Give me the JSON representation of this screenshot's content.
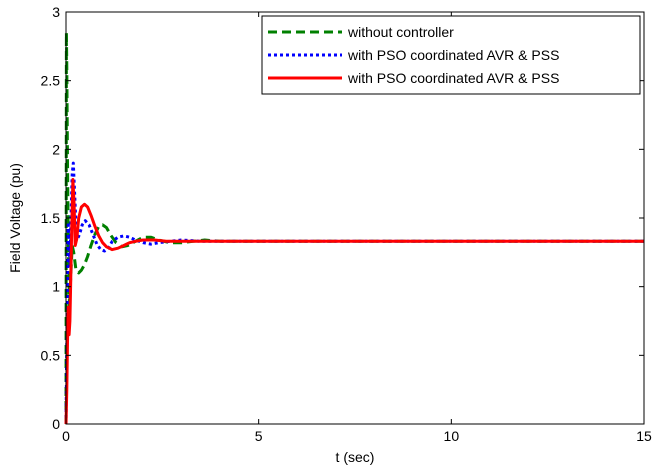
{
  "chart_data": {
    "type": "line",
    "title": "",
    "xlabel": "t (sec)",
    "ylabel": "Field Voltage (pu)",
    "xlim": [
      0,
      15
    ],
    "ylim": [
      0,
      3
    ],
    "xticks": [
      0,
      5,
      10,
      15
    ],
    "yticks": [
      0,
      0.5,
      1,
      1.5,
      2,
      2.5,
      3
    ],
    "xtick_labels": [
      "0",
      "5",
      "10",
      "15"
    ],
    "ytick_labels": [
      "0",
      "0.5",
      "1",
      "1.5",
      "2",
      "2.5",
      "3"
    ],
    "grid": false,
    "legend_position": "top-right",
    "series": [
      {
        "name": "without controller",
        "color": "#008000",
        "style": "dashed",
        "x": [
          0,
          0.01,
          0.02,
          0.04,
          0.06,
          0.09,
          0.12,
          0.16,
          0.2,
          0.26,
          0.33,
          0.4,
          0.48,
          0.56,
          0.65,
          0.75,
          0.85,
          0.95,
          1.05,
          1.15,
          1.3,
          1.45,
          1.6,
          1.8,
          2.0,
          2.2,
          2.4,
          2.7,
          3.0,
          3.3,
          3.6,
          4.0,
          5.0,
          6.0,
          8.0,
          10.0,
          12.0,
          15.0
        ],
        "y": [
          0,
          2.85,
          2.6,
          1.9,
          1.3,
          0.85,
          1.05,
          1.3,
          1.25,
          1.12,
          1.1,
          1.12,
          1.16,
          1.22,
          1.3,
          1.38,
          1.44,
          1.45,
          1.43,
          1.38,
          1.32,
          1.29,
          1.3,
          1.33,
          1.36,
          1.36,
          1.34,
          1.32,
          1.32,
          1.33,
          1.34,
          1.33,
          1.33,
          1.33,
          1.33,
          1.33,
          1.33,
          1.33
        ]
      },
      {
        "name": "with PSO coordinated AVR & PSS",
        "color": "#0000ff",
        "style": "dotted",
        "x": [
          0,
          0.02,
          0.04,
          0.06,
          0.08,
          0.1,
          0.13,
          0.16,
          0.19,
          0.22,
          0.26,
          0.3,
          0.35,
          0.42,
          0.5,
          0.6,
          0.7,
          0.8,
          0.9,
          1.0,
          1.1,
          1.2,
          1.35,
          1.5,
          1.65,
          1.8,
          2.0,
          2.2,
          2.4,
          2.7,
          3.0,
          3.5,
          4.0,
          5.0,
          7.0,
          10.0,
          15.0
        ],
        "y": [
          0,
          0.6,
          1.1,
          1.45,
          1.3,
          1.15,
          1.5,
          1.82,
          1.9,
          1.7,
          1.45,
          1.35,
          1.38,
          1.45,
          1.48,
          1.45,
          1.38,
          1.31,
          1.27,
          1.26,
          1.28,
          1.33,
          1.36,
          1.37,
          1.36,
          1.34,
          1.32,
          1.31,
          1.32,
          1.33,
          1.34,
          1.33,
          1.33,
          1.33,
          1.33,
          1.33,
          1.33
        ]
      },
      {
        "name": "with PSO coordinated AVR & PSS",
        "color": "#ff0000",
        "style": "solid",
        "x": [
          0,
          0.02,
          0.04,
          0.06,
          0.08,
          0.1,
          0.12,
          0.15,
          0.18,
          0.21,
          0.24,
          0.28,
          0.33,
          0.4,
          0.48,
          0.56,
          0.65,
          0.75,
          0.85,
          0.95,
          1.05,
          1.2,
          1.35,
          1.5,
          1.65,
          1.8,
          2.0,
          2.3,
          2.6,
          3.0,
          3.5,
          4.0,
          5.0,
          7.0,
          10.0,
          15.0
        ],
        "y": [
          0,
          0.25,
          0.6,
          0.85,
          0.65,
          0.75,
          1.0,
          1.45,
          1.78,
          1.6,
          1.3,
          1.35,
          1.5,
          1.58,
          1.6,
          1.58,
          1.52,
          1.44,
          1.37,
          1.32,
          1.29,
          1.27,
          1.28,
          1.3,
          1.32,
          1.33,
          1.34,
          1.34,
          1.33,
          1.33,
          1.33,
          1.33,
          1.33,
          1.33,
          1.33,
          1.33
        ]
      }
    ]
  }
}
